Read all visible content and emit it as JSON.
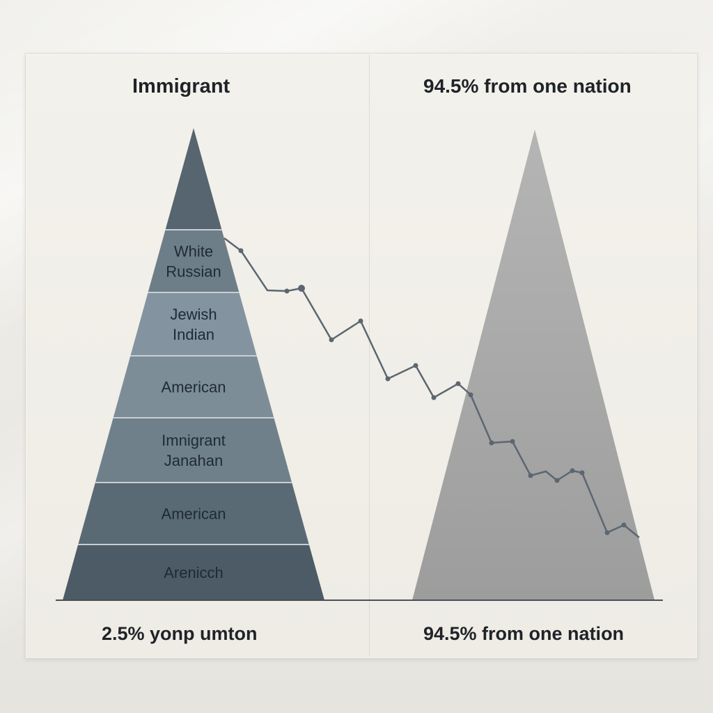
{
  "titles": {
    "left": "Immigrant",
    "right": "94.5% from one nation"
  },
  "captions": {
    "left": "2.5% yonp umton",
    "right": "94.5% from one nation"
  },
  "left_pyramid": {
    "tiers": [
      {
        "lines": [],
        "color": "#56656f"
      },
      {
        "lines": [
          "White",
          "Russian"
        ],
        "color": "#6e7e88"
      },
      {
        "lines": [
          "Jewish",
          "Indian"
        ],
        "color": "#8394a0"
      },
      {
        "lines": [
          "American"
        ],
        "color": "#7d8d98"
      },
      {
        "lines": [
          "Imnigrant",
          "Janahan"
        ],
        "color": "#6f808b"
      },
      {
        "lines": [
          "American"
        ],
        "color": "#5a6a75"
      },
      {
        "lines": [
          "Arenicch"
        ],
        "color": "#4c5b66"
      }
    ]
  },
  "right_pyramid": {
    "color": "#a3a4a3"
  },
  "trend_line": {
    "color": "#5c6670"
  }
}
